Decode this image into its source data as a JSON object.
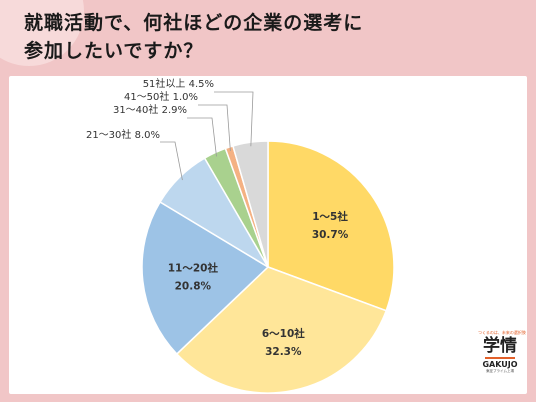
{
  "title": {
    "line1": "就職活動で、何社ほどの企業の選考に",
    "line2": "参加したいですか？"
  },
  "chart_data": {
    "type": "pie",
    "slices": [
      {
        "label": "1～5社",
        "value": 30.7,
        "pct_text": "30.7%",
        "color": "#ffd966",
        "placement": "inside"
      },
      {
        "label": "6～10社",
        "value": 32.3,
        "pct_text": "32.3%",
        "color": "#ffe699",
        "placement": "inside"
      },
      {
        "label": "11～20社",
        "value": 20.8,
        "pct_text": "20.8%",
        "color": "#9dc3e6",
        "placement": "inside"
      },
      {
        "label": "21～30社",
        "value": 8.0,
        "pct_text": "8.0%",
        "color": "#bdd7ee",
        "placement": "outside"
      },
      {
        "label": "31～40社",
        "value": 2.9,
        "pct_text": "2.9%",
        "color": "#a9d18e",
        "placement": "outside"
      },
      {
        "label": "41～50社",
        "value": 1.0,
        "pct_text": "1.0%",
        "color": "#f4b183",
        "placement": "outside"
      },
      {
        "label": "51社以上",
        "value": 4.5,
        "pct_text": "4.5%",
        "color": "#d9d9d9",
        "placement": "outside"
      }
    ]
  },
  "logo": {
    "tagline": "つくるのは、未来の選択肢",
    "main": "学情",
    "sub": "GAKUJO",
    "small": "東証プライム上場"
  }
}
